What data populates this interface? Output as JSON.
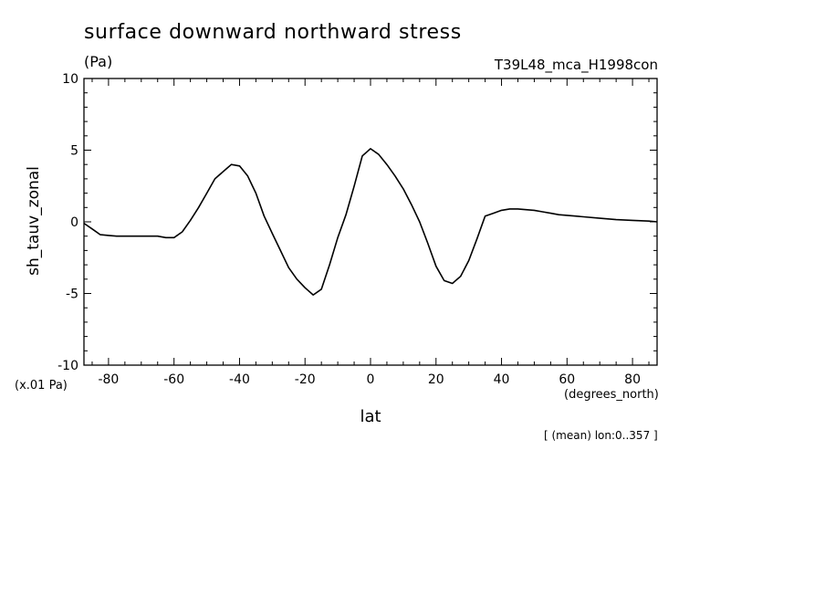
{
  "chart_data": {
    "type": "line",
    "title": "surface downward northward stress",
    "units": "(Pa)",
    "dataset": "T39L48_mca_H1998con",
    "ylabel": "sh_tauv_zonal",
    "xlabel": "lat",
    "y_scale_note": "(x.01 Pa)",
    "x_units": "(degrees_north)",
    "mean_note": "[ (mean) lon:0..357 ]",
    "xlim": [
      -87.5,
      87.5
    ],
    "ylim": [
      -10,
      10
    ],
    "x_ticks": [
      -80,
      -60,
      -40,
      -20,
      0,
      20,
      40,
      60,
      80
    ],
    "x_tick_labels": [
      "-80",
      "-60",
      "-40",
      "-20",
      "0",
      "20",
      "40",
      "60",
      "80"
    ],
    "y_ticks": [
      -10,
      -5,
      0,
      5,
      10
    ],
    "y_tick_labels": [
      "-10",
      "-5",
      "0",
      "5",
      "10"
    ],
    "grid": false,
    "series": [
      {
        "x": [
          -87.5,
          -85,
          -82.5,
          -80,
          -77.5,
          -75,
          -72.5,
          -70,
          -65,
          -62.5,
          -60,
          -57.5,
          -55,
          -52.5,
          -50,
          -47.5,
          -45,
          -42.5,
          -40,
          -37.5,
          -35,
          -32.5,
          -30,
          -27.5,
          -25,
          -22.5,
          -20,
          -17.5,
          -15,
          -12.5,
          -10,
          -7.5,
          -5,
          -2.5,
          0,
          2.5,
          5,
          7.5,
          10,
          12.5,
          15,
          17.5,
          20,
          22.5,
          25,
          27.5,
          30,
          32.5,
          35,
          37.5,
          40,
          42.5,
          45,
          47.5,
          50,
          52.5,
          55,
          57.5,
          60,
          62.5,
          65,
          70,
          75,
          80,
          85,
          87.5
        ],
        "y": [
          -0.1,
          -0.5,
          -0.9,
          -0.95,
          -1.0,
          -1.0,
          -1.0,
          -1.0,
          -1.0,
          -1.1,
          -1.1,
          -0.7,
          0.1,
          1.0,
          2.0,
          3.0,
          3.5,
          4.0,
          3.9,
          3.2,
          2.0,
          0.4,
          -0.8,
          -2.0,
          -3.2,
          -4.0,
          -4.6,
          -5.1,
          -4.7,
          -3.0,
          -1.1,
          0.5,
          2.5,
          4.6,
          5.1,
          4.7,
          4.0,
          3.2,
          2.3,
          1.2,
          0.0,
          -1.5,
          -3.1,
          -4.1,
          -4.3,
          -3.8,
          -2.7,
          -1.2,
          0.4,
          0.6,
          0.8,
          0.9,
          0.9,
          0.85,
          0.8,
          0.7,
          0.6,
          0.5,
          0.45,
          0.4,
          0.35,
          0.25,
          0.15,
          0.1,
          0.05,
          0.0
        ]
      }
    ]
  }
}
